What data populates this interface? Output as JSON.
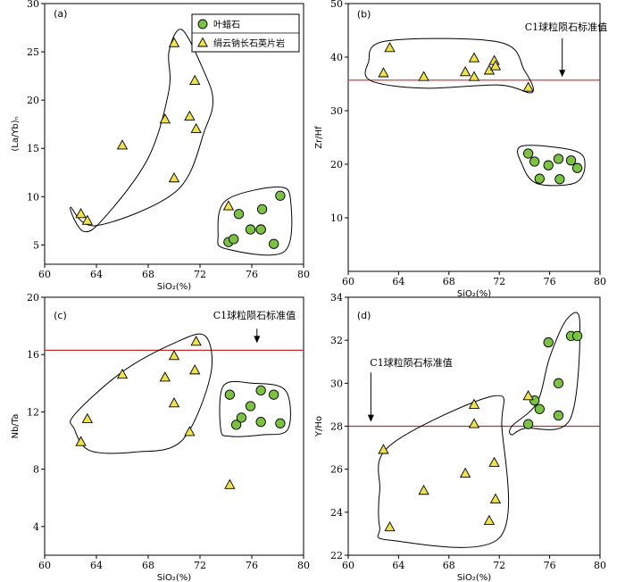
{
  "chart_data": [
    {
      "type": "scatter",
      "panel_label": "(a)",
      "xlabel": "SiO₂(%)",
      "ylabel": "(La/Yb)ₙ",
      "xlim": [
        60,
        80
      ],
      "ylim": [
        3,
        30
      ],
      "xticks": [
        60,
        64,
        68,
        72,
        76,
        80
      ],
      "yticks": [
        5,
        10,
        15,
        20,
        25,
        30
      ],
      "legend": {
        "placement": "top-right",
        "entries": [
          {
            "marker": "circle",
            "label": "叶蜡石"
          },
          {
            "marker": "triangle",
            "label": "绢云钠长石英片岩"
          }
        ]
      },
      "series": [
        {
          "marker": "circle",
          "color": "#7cc242",
          "x": [
            74.2,
            74.6,
            75.0,
            75.9,
            76.7,
            76.8,
            77.7,
            78.2,
            76.7
          ],
          "y": [
            5.3,
            5.6,
            8.2,
            6.6,
            6.6,
            8.7,
            5.1,
            10.1,
            6.6
          ]
        },
        {
          "marker": "triangle",
          "color": "#f0e24a",
          "x": [
            62.8,
            63.3,
            66.0,
            69.3,
            70.0,
            70.0,
            71.2,
            71.6,
            71.7,
            74.2
          ],
          "y": [
            8.2,
            7.5,
            15.3,
            18.0,
            25.9,
            11.9,
            18.3,
            22.0,
            17.0,
            9.0
          ]
        }
      ]
    },
    {
      "type": "scatter",
      "panel_label": "(b)",
      "xlabel": "SiO₂(%)",
      "ylabel": "Zr/Hf",
      "xlim": [
        60,
        80
      ],
      "ylim": [
        0,
        50
      ],
      "xticks": [
        60,
        64,
        68,
        72,
        76,
        80
      ],
      "yticks": [
        10,
        20,
        30,
        40,
        50
      ],
      "reference_line": {
        "y": 35.7,
        "label": "C1球粒陨石标准值",
        "color": "#cc2a2a"
      },
      "series": [
        {
          "marker": "circle",
          "color": "#7cc242",
          "x": [
            74.3,
            74.8,
            75.2,
            75.9,
            76.7,
            77.7,
            78.2,
            76.8
          ],
          "y": [
            22.0,
            20.5,
            17.3,
            19.8,
            21.0,
            20.7,
            19.3,
            17.2
          ]
        },
        {
          "marker": "triangle",
          "color": "#f0e24a",
          "x": [
            62.8,
            63.3,
            66.0,
            69.3,
            70.0,
            70.0,
            71.2,
            71.6,
            71.7,
            74.3
          ],
          "y": [
            37.0,
            41.7,
            36.3,
            37.2,
            39.8,
            36.3,
            37.5,
            39.3,
            38.3,
            34.3
          ]
        }
      ]
    },
    {
      "type": "scatter",
      "panel_label": "(c)",
      "xlabel": "SiO₂(%)",
      "ylabel": "Nb/Ta",
      "xlim": [
        60,
        80
      ],
      "ylim": [
        2,
        20
      ],
      "xticks": [
        60,
        64,
        68,
        72,
        76,
        80
      ],
      "yticks": [
        4,
        8,
        12,
        16,
        20
      ],
      "reference_line": {
        "y": 16.3,
        "label": "C1球粒陨石标准值",
        "color": "#cc2a2a"
      },
      "series": [
        {
          "marker": "circle",
          "color": "#7cc242",
          "x": [
            74.3,
            74.8,
            75.2,
            75.9,
            76.7,
            76.7,
            77.7,
            78.2
          ],
          "y": [
            13.2,
            11.1,
            11.6,
            12.4,
            13.5,
            11.3,
            13.2,
            11.2
          ]
        },
        {
          "marker": "triangle",
          "color": "#f0e24a",
          "x": [
            62.8,
            63.3,
            66.0,
            69.3,
            70.0,
            70.0,
            71.2,
            71.6,
            71.7,
            74.3
          ],
          "y": [
            9.9,
            11.5,
            14.6,
            14.4,
            15.9,
            12.6,
            10.6,
            14.9,
            16.9,
            6.9
          ]
        }
      ]
    },
    {
      "type": "scatter",
      "panel_label": "(d)",
      "xlabel": "SiO₂(%)",
      "ylabel": "Y/Ho",
      "xlim": [
        60,
        80
      ],
      "ylim": [
        22,
        34
      ],
      "xticks": [
        60,
        64,
        68,
        72,
        76,
        80
      ],
      "yticks": [
        22,
        24,
        26,
        28,
        30,
        32,
        34
      ],
      "reference_line": {
        "y": 28.0,
        "label": "C1球粒陨石标准值",
        "color": "#cc2a2a"
      },
      "series": [
        {
          "marker": "circle",
          "color": "#7cc242",
          "x": [
            74.3,
            74.8,
            75.2,
            75.9,
            76.7,
            76.7,
            77.7,
            78.2
          ],
          "y": [
            28.1,
            29.2,
            28.8,
            31.9,
            30.0,
            28.5,
            32.2,
            32.2
          ]
        },
        {
          "marker": "triangle",
          "color": "#f0e24a",
          "x": [
            62.8,
            63.3,
            66.0,
            69.3,
            70.0,
            70.0,
            71.2,
            71.6,
            71.7,
            74.3
          ],
          "y": [
            26.9,
            23.3,
            25.0,
            25.8,
            28.1,
            29.0,
            23.6,
            26.3,
            24.6,
            29.4
          ]
        }
      ]
    }
  ]
}
